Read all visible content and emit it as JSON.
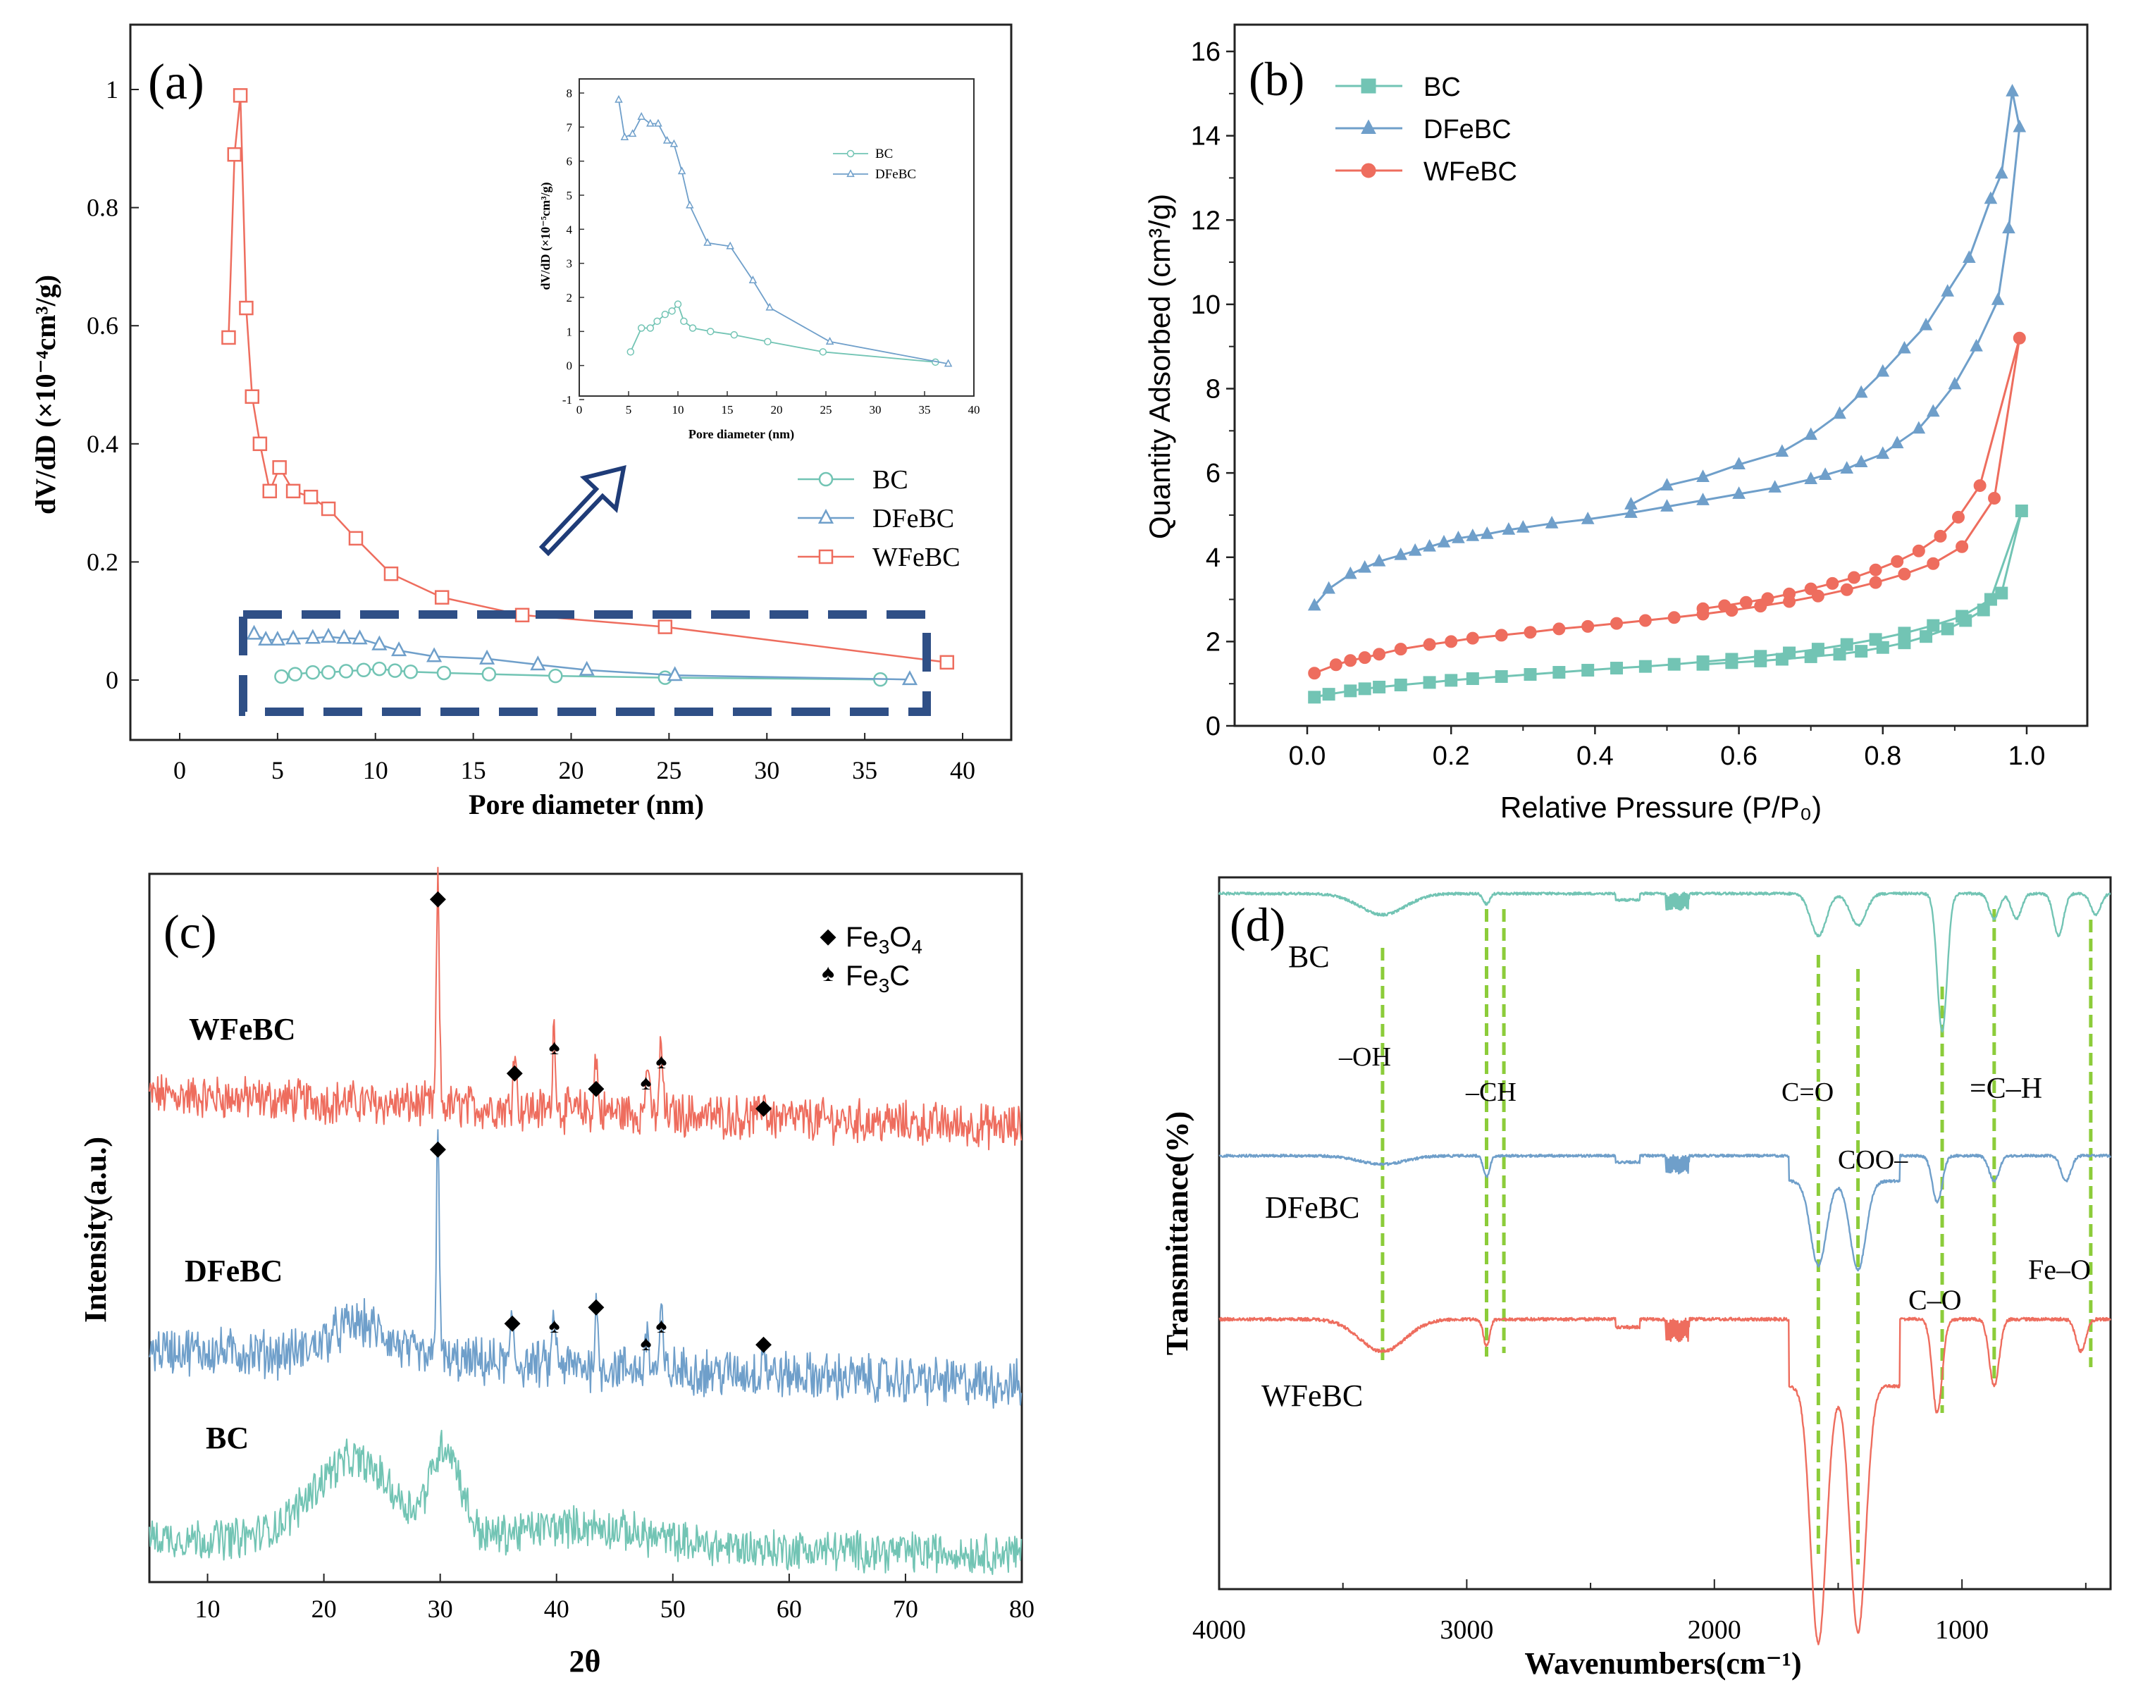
{
  "colors": {
    "bc": "#72c4b4",
    "dfebc": "#6f9fca",
    "wfebc": "#ee6d5e",
    "box": "#2f4f86",
    "guide": "#8ccc3a",
    "axis": "#222222"
  },
  "chart_data": [
    {
      "id": "a",
      "type": "line",
      "panel_label": "(a)",
      "xlabel": "Pore diameter (nm)",
      "ylabel": "dV/dD (×10⁻⁴cm³/g)",
      "xlim": [
        -2.5,
        42
      ],
      "ylim": [
        -0.1,
        1.08
      ],
      "xticks": [
        0,
        5,
        10,
        15,
        20,
        25,
        30,
        35,
        40
      ],
      "yticks": [
        0,
        0.2,
        0.4,
        0.6,
        0.8,
        1
      ],
      "ytick_labels": [
        "0",
        "0.2",
        "0.4",
        "0.6",
        "0.8",
        "1"
      ],
      "legend": [
        "BC",
        "DFeBC",
        "WFeBC"
      ],
      "legend_position": "center-right",
      "series": [
        {
          "name": "BC",
          "marker": "circle",
          "x": [
            5.2,
            5.9,
            6.8,
            7.6,
            8.5,
            9.4,
            10.2,
            11,
            11.8,
            13.5,
            15.8,
            19.2,
            24.8,
            35.8
          ],
          "y": [
            0.006,
            0.01,
            0.013,
            0.013,
            0.015,
            0.017,
            0.019,
            0.016,
            0.014,
            0.012,
            0.01,
            0.007,
            0.004,
            0.001
          ]
        },
        {
          "name": "DFeBC",
          "marker": "triangle",
          "x": [
            3.8,
            4.4,
            5,
            5.8,
            6.8,
            7.6,
            8.4,
            9.2,
            10.2,
            11.2,
            13,
            15.7,
            18.3,
            20.8,
            25.3,
            37.3
          ],
          "y": [
            0.078,
            0.068,
            0.068,
            0.07,
            0.071,
            0.073,
            0.071,
            0.07,
            0.06,
            0.05,
            0.04,
            0.036,
            0.026,
            0.017,
            0.008,
            0.001
          ]
        },
        {
          "name": "WFeBC",
          "marker": "square",
          "x": [
            2.5,
            2.8,
            3.1,
            3.4,
            3.7,
            4.1,
            4.6,
            5.1,
            5.8,
            6.7,
            7.6,
            9,
            10.8,
            13.4,
            17.5,
            24.8,
            39.2
          ],
          "y": [
            0.58,
            0.89,
            0.99,
            0.63,
            0.48,
            0.4,
            0.32,
            0.36,
            0.32,
            0.31,
            0.29,
            0.24,
            0.18,
            0.14,
            0.11,
            0.09,
            0.03
          ]
        }
      ],
      "inset": {
        "type": "line",
        "xlabel": "Pore diameter (nm)",
        "ylabel": "dV/dD (×10⁻⁵cm³/g)",
        "xlim": [
          0,
          40
        ],
        "ylim": [
          -1,
          8.3
        ],
        "xticks": [
          0,
          5,
          10,
          15,
          20,
          25,
          30,
          35,
          40
        ],
        "yticks": [
          -1,
          0,
          1,
          2,
          3,
          4,
          5,
          6,
          7,
          8
        ],
        "legend": [
          "BC",
          "DFeBC"
        ],
        "series": [
          {
            "name": "BC",
            "x": [
              5.2,
              6.3,
              7.2,
              7.9,
              8.7,
              9.4,
              10,
              10.6,
              11.5,
              13.3,
              15.7,
              19.1,
              24.7,
              36.1
            ],
            "y": [
              0.4,
              1.1,
              1.1,
              1.3,
              1.5,
              1.6,
              1.8,
              1.3,
              1.1,
              1.0,
              0.9,
              0.7,
              0.4,
              0.1
            ]
          },
          {
            "name": "DFeBC",
            "x": [
              4,
              4.6,
              5.4,
              6.3,
              7.2,
              8,
              8.9,
              9.6,
              10.4,
              11.2,
              13,
              15.3,
              17.6,
              19.3,
              25.4,
              37.4
            ],
            "y": [
              7.8,
              6.7,
              6.8,
              7.3,
              7.1,
              7.1,
              6.6,
              6.5,
              5.7,
              4.7,
              3.6,
              3.5,
              2.5,
              1.7,
              0.7,
              0.05
            ]
          }
        ]
      },
      "arrow_annotation": "inset-arrow"
    },
    {
      "id": "b",
      "type": "line",
      "panel_label": "(b)",
      "xlabel": "Relative Pressure (P/P₀)",
      "ylabel": "Quantity Adsorbed (cm³/g)",
      "xlim": [
        -0.09,
        1.09
      ],
      "ylim": [
        0,
        16.3
      ],
      "xticks": [
        0.0,
        0.2,
        0.4,
        0.6,
        0.8,
        1.0
      ],
      "xtick_labels": [
        "0.0",
        "0.2",
        "0.4",
        "0.6",
        "0.8",
        "1.0"
      ],
      "yticks": [
        0,
        2,
        4,
        6,
        8,
        10,
        12,
        14,
        16
      ],
      "legend": [
        "BC",
        "DFeBC",
        "WFeBC"
      ],
      "legend_position": "top-left",
      "series": [
        {
          "name": "BC",
          "marker": "square",
          "x": [
            0.01,
            0.03,
            0.06,
            0.08,
            0.1,
            0.13,
            0.17,
            0.2,
            0.23,
            0.27,
            0.31,
            0.35,
            0.39,
            0.43,
            0.47,
            0.51,
            0.55,
            0.59,
            0.63,
            0.67,
            0.71,
            0.75,
            0.79,
            0.83,
            0.87,
            0.91,
            0.95,
            0.993,
            0.965,
            0.94,
            0.915,
            0.89,
            0.86,
            0.83,
            0.8,
            0.77,
            0.74,
            0.7,
            0.66,
            0.63,
            0.59,
            0.55
          ],
          "y": [
            0.68,
            0.75,
            0.83,
            0.88,
            0.92,
            0.97,
            1.03,
            1.08,
            1.12,
            1.17,
            1.22,
            1.27,
            1.32,
            1.37,
            1.41,
            1.46,
            1.52,
            1.58,
            1.65,
            1.73,
            1.82,
            1.93,
            2.05,
            2.2,
            2.38,
            2.6,
            3.0,
            5.1,
            3.15,
            2.75,
            2.5,
            2.3,
            2.12,
            1.97,
            1.86,
            1.77,
            1.7,
            1.64,
            1.58,
            1.54,
            1.5,
            1.46
          ]
        },
        {
          "name": "DFeBC",
          "marker": "triangle",
          "x": [
            0.01,
            0.03,
            0.06,
            0.08,
            0.1,
            0.13,
            0.15,
            0.17,
            0.19,
            0.21,
            0.23,
            0.25,
            0.28,
            0.3,
            0.34,
            0.39,
            0.45,
            0.5,
            0.55,
            0.6,
            0.65,
            0.7,
            0.72,
            0.75,
            0.77,
            0.8,
            0.82,
            0.85,
            0.87,
            0.9,
            0.93,
            0.96,
            0.975,
            0.99,
            0.98,
            0.965,
            0.95,
            0.92,
            0.89,
            0.86,
            0.83,
            0.8,
            0.77,
            0.74,
            0.7,
            0.66,
            0.6,
            0.55,
            0.5,
            0.45
          ],
          "y": [
            2.85,
            3.25,
            3.6,
            3.75,
            3.9,
            4.05,
            4.15,
            4.25,
            4.35,
            4.45,
            4.5,
            4.55,
            4.65,
            4.7,
            4.8,
            4.9,
            5.05,
            5.2,
            5.35,
            5.5,
            5.65,
            5.85,
            5.95,
            6.1,
            6.25,
            6.45,
            6.7,
            7.05,
            7.45,
            8.1,
            9.0,
            10.1,
            11.8,
            14.2,
            15.05,
            13.1,
            12.5,
            11.1,
            10.3,
            9.5,
            8.95,
            8.4,
            7.9,
            7.4,
            6.9,
            6.5,
            6.2,
            5.9,
            5.7,
            5.25
          ]
        },
        {
          "name": "WFeBC",
          "marker": "circle",
          "x": [
            0.01,
            0.04,
            0.06,
            0.08,
            0.1,
            0.13,
            0.17,
            0.2,
            0.23,
            0.27,
            0.31,
            0.35,
            0.39,
            0.43,
            0.47,
            0.51,
            0.55,
            0.59,
            0.63,
            0.67,
            0.71,
            0.75,
            0.79,
            0.83,
            0.87,
            0.91,
            0.955,
            0.99,
            0.935,
            0.905,
            0.88,
            0.85,
            0.82,
            0.79,
            0.76,
            0.73,
            0.7,
            0.67,
            0.64,
            0.61,
            0.58,
            0.55
          ],
          "y": [
            1.25,
            1.45,
            1.55,
            1.62,
            1.7,
            1.82,
            1.93,
            2.0,
            2.08,
            2.15,
            2.22,
            2.3,
            2.36,
            2.43,
            2.5,
            2.57,
            2.65,
            2.74,
            2.84,
            2.95,
            3.08,
            3.23,
            3.4,
            3.6,
            3.85,
            4.25,
            5.4,
            9.2,
            5.7,
            4.95,
            4.5,
            4.15,
            3.9,
            3.7,
            3.52,
            3.38,
            3.25,
            3.13,
            3.02,
            2.93,
            2.85,
            2.78
          ]
        }
      ]
    },
    {
      "id": "c",
      "type": "line",
      "panel_label": "(c)",
      "xlabel": "2θ",
      "ylabel": "Intensity(a.u.)",
      "xlim": [
        5,
        80
      ],
      "xticks": [
        10,
        20,
        30,
        40,
        50,
        60,
        70,
        80
      ],
      "legend": [
        "Fe3O4",
        "Fe3C"
      ],
      "legend_position": "top-right",
      "series": [
        {
          "name": "WFeBC",
          "baseline": 0.15,
          "peaks": [
            [
              29.8,
              1.0
            ],
            [
              36.4,
              0.32
            ],
            [
              39.8,
              0.4
            ],
            [
              43.4,
              0.26
            ],
            [
              47.8,
              0.26
            ],
            [
              49,
              0.34
            ],
            [
              57.8,
              0.12
            ]
          ],
          "markers": [
            [
              "diamond",
              29.8
            ],
            [
              "diamond",
              36.4
            ],
            [
              "spade",
              39.8
            ],
            [
              "diamond",
              43.4
            ],
            [
              "spade",
              47.8
            ],
            [
              "spade",
              49
            ],
            [
              "diamond",
              57.8
            ]
          ]
        },
        {
          "name": "DFeBC",
          "baseline": 0.15,
          "peaks": [
            [
              29.8,
              1.0
            ],
            [
              36.2,
              0.2
            ],
            [
              39.8,
              0.24
            ],
            [
              43.4,
              0.26
            ],
            [
              47.8,
              0.18
            ],
            [
              49,
              0.24
            ],
            [
              57.8,
              0.13
            ]
          ],
          "markers": [
            [
              "diamond",
              29.8
            ],
            [
              "diamond",
              36.2
            ],
            [
              "spade",
              39.8
            ],
            [
              "diamond",
              43.4
            ],
            [
              "spade",
              47.8
            ],
            [
              "spade",
              49
            ],
            [
              "diamond",
              57.8
            ]
          ]
        },
        {
          "name": "BC",
          "baseline": 0.1,
          "broad_humps": [
            [
              22.5,
              0.5
            ],
            [
              30.5,
              0.55
            ]
          ]
        }
      ]
    },
    {
      "id": "d",
      "type": "line",
      "panel_label": "(d)",
      "xlabel": "Wavenumbers(cm⁻¹)",
      "ylabel": "Transmittance(%)",
      "xlim": [
        4000,
        400
      ],
      "xticks": [
        4000,
        3000,
        2000,
        1000
      ],
      "series": [
        {
          "name": "BC",
          "bands": [
            [
              3340,
              0.1
            ],
            [
              2920,
              0.05
            ],
            [
              1580,
              0.2
            ],
            [
              1420,
              0.15
            ],
            [
              1080,
              0.65
            ],
            [
              870,
              0.12
            ],
            [
              780,
              0.12
            ],
            [
              610,
              0.2
            ],
            [
              460,
              0.1
            ]
          ]
        },
        {
          "name": "DFeBC",
          "bands": [
            [
              3340,
              0.04
            ],
            [
              2920,
              0.1
            ],
            [
              1580,
              0.4
            ],
            [
              1420,
              0.42
            ],
            [
              1100,
              0.22
            ],
            [
              870,
              0.12
            ],
            [
              580,
              0.12
            ]
          ]
        },
        {
          "name": "WFeBC",
          "bands": [
            [
              3340,
              0.12
            ],
            [
              2920,
              0.1
            ],
            [
              1580,
              0.96
            ],
            [
              1420,
              0.92
            ],
            [
              1100,
              0.35
            ],
            [
              870,
              0.25
            ],
            [
              520,
              0.12
            ]
          ]
        }
      ],
      "guides": [
        3340,
        2920,
        2850,
        1580,
        1420,
        1080,
        870,
        480
      ],
      "annotations": [
        "–OH",
        "–CH",
        "C=O",
        "COO–",
        "C–O",
        "=C–H",
        "Fe–O"
      ]
    }
  ]
}
